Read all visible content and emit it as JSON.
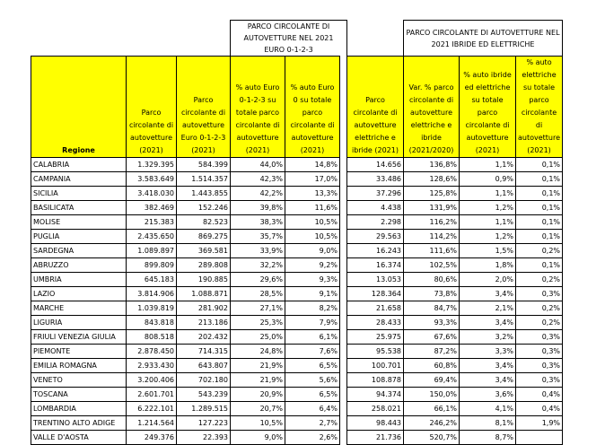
{
  "group_headers": [
    "PARCO CIRCOLANTE DI AUTOVETTURE NEL 2021 EURO 0-1-2-3",
    "PARCO CIRCOLANTE DI AUTOVETTURE NEL 2021 IBRIDE ED ELETTRICHE"
  ],
  "columns": [
    "Regione",
    "Parco circolante di autovetture (2021)",
    "Parco circolante di autovetture Euro 0-1-2-3 (2021)",
    "% auto Euro 0-1-2-3 su totale parco circolante di autovetture (2021)",
    "% auto Euro 0 su totale parco circolante di autovetture (2021)",
    "Parco circolante di autovetture elettriche e ibride (2021)",
    "Var. % parco circolante di autovetture elettriche e ibride (2021/2020)",
    "% auto ibride ed elettriche su totale parco circolante di autovetture (2021)",
    "% auto elettriche su totale parco circolante di autovetture (2021)"
  ],
  "rows": [
    [
      "CALABRIA",
      "1.329.395",
      "584.399",
      "44,0%",
      "14,8%",
      "14.656",
      "136,8%",
      "1,1%",
      "0,1%"
    ],
    [
      "CAMPANIA",
      "3.583.649",
      "1.514.357",
      "42,3%",
      "17,0%",
      "33.486",
      "128,6%",
      "0,9%",
      "0,1%"
    ],
    [
      "SICILIA",
      "3.418.030",
      "1.443.855",
      "42,2%",
      "13,3%",
      "37.296",
      "125,8%",
      "1,1%",
      "0,1%"
    ],
    [
      "BASILICATA",
      "382.469",
      "152.246",
      "39,8%",
      "11,6%",
      "4.438",
      "131,9%",
      "1,2%",
      "0,1%"
    ],
    [
      "MOLISE",
      "215.383",
      "82.523",
      "38,3%",
      "10,5%",
      "2.298",
      "116,2%",
      "1,1%",
      "0,1%"
    ],
    [
      "PUGLIA",
      "2.435.650",
      "869.275",
      "35,7%",
      "10,5%",
      "29.563",
      "114,2%",
      "1,2%",
      "0,1%"
    ],
    [
      "SARDEGNA",
      "1.089.897",
      "369.581",
      "33,9%",
      "9,0%",
      "16.243",
      "111,6%",
      "1,5%",
      "0,2%"
    ],
    [
      "ABRUZZO",
      "899.809",
      "289.808",
      "32,2%",
      "9,2%",
      "16.374",
      "102,5%",
      "1,8%",
      "0,1%"
    ],
    [
      "UMBRIA",
      "645.183",
      "190.885",
      "29,6%",
      "9,3%",
      "13.053",
      "80,6%",
      "2,0%",
      "0,2%"
    ],
    [
      "LAZIO",
      "3.814.906",
      "1.088.871",
      "28,5%",
      "9,1%",
      "128.364",
      "73,8%",
      "3,4%",
      "0,3%"
    ],
    [
      "MARCHE",
      "1.039.819",
      "281.902",
      "27,1%",
      "8,2%",
      "21.658",
      "84,7%",
      "2,1%",
      "0,2%"
    ],
    [
      "LIGURIA",
      "843.818",
      "213.186",
      "25,3%",
      "7,9%",
      "28.433",
      "93,3%",
      "3,4%",
      "0,2%"
    ],
    [
      "FRIULI VENEZIA GIULIA",
      "808.518",
      "202.432",
      "25,0%",
      "6,1%",
      "25.975",
      "67,6%",
      "3,2%",
      "0,3%"
    ],
    [
      "PIEMONTE",
      "2.878.450",
      "714.315",
      "24,8%",
      "7,6%",
      "95.538",
      "87,2%",
      "3,3%",
      "0,3%"
    ],
    [
      "EMILIA ROMAGNA",
      "2.933.430",
      "643.807",
      "21,9%",
      "6,5%",
      "100.701",
      "60,8%",
      "3,4%",
      "0,3%"
    ],
    [
      "VENETO",
      "3.200.406",
      "702.180",
      "21,9%",
      "5,6%",
      "108.878",
      "69,4%",
      "3,4%",
      "0,3%"
    ],
    [
      "TOSCANA",
      "2.601.701",
      "543.239",
      "20,9%",
      "6,5%",
      "94.374",
      "150,0%",
      "3,6%",
      "0,4%"
    ],
    [
      "LOMBARDIA",
      "6.222.101",
      "1.289.515",
      "20,7%",
      "6,4%",
      "258.021",
      "66,1%",
      "4,1%",
      "0,4%"
    ],
    [
      "TRENTINO ALTO ADIGE",
      "1.214.564",
      "127.223",
      "10,5%",
      "2,7%",
      "98.443",
      "246,2%",
      "8,1%",
      "1,9%"
    ],
    [
      "VALLE D'AOSTA",
      "249.376",
      "22.393",
      "9,0%",
      "2,6%",
      "21.736",
      "520,7%",
      "8,7%",
      ""
    ]
  ],
  "separator_after": [
    3,
    8,
    14
  ]
}
